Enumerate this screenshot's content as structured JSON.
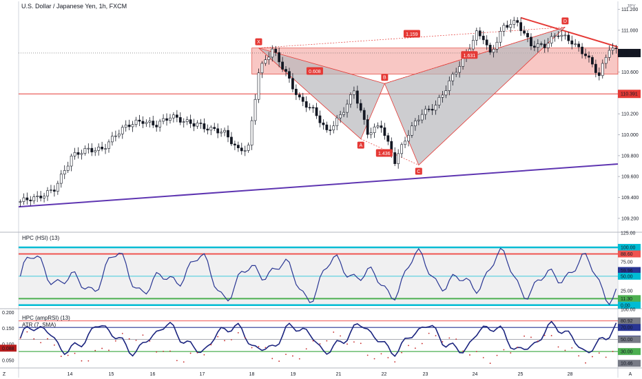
{
  "header": {
    "title": "U.S. Dollar / Japanese Yen, 1h, FXCM",
    "currency": "JPY"
  },
  "colors": {
    "up": "#131722",
    "down": "#131722",
    "zone_fill": "#f6b4b0",
    "zone_stroke": "#e0443a",
    "pattern_fill": "#b8b8bc",
    "trend_red": "#e53935",
    "trend_purple": "#5e35b1",
    "osc_line": "#283593",
    "band_blue": "#00bcd4",
    "band_red": "#ef5350",
    "band_green": "#4caf50"
  },
  "chart_data": [
    {
      "type": "candlestick",
      "title": "U.S. Dollar / Japanese Yen, 1h, FXCM",
      "ylim": [
        109.1,
        111.25
      ],
      "yticks": [
        "111.200",
        "111.000",
        "110.800",
        "110.600",
        "110.400",
        "110.200",
        "110.000",
        "109.800",
        "109.600",
        "109.400",
        "109.200"
      ],
      "xticks": [
        "Z",
        "14",
        "15",
        "16",
        "17",
        "18",
        "19",
        "21",
        "22",
        "23",
        "24",
        "25",
        "28",
        "A"
      ],
      "price_labels": [
        {
          "value": 110.782,
          "text": "110.782",
          "bg": "#131722"
        },
        {
          "value": 110.391,
          "text": "110.391",
          "bg": "#e53935"
        }
      ],
      "anchors": [
        [
          0,
          109.36
        ],
        [
          5,
          109.38
        ],
        [
          10,
          109.5
        ],
        [
          15,
          109.78
        ],
        [
          20,
          109.85
        ],
        [
          24,
          109.88
        ],
        [
          28,
          110.0
        ],
        [
          32,
          110.08
        ],
        [
          36,
          110.14
        ],
        [
          40,
          110.11
        ],
        [
          44,
          110.16
        ],
        [
          48,
          110.12
        ],
        [
          52,
          110.12
        ],
        [
          56,
          110.05
        ],
        [
          60,
          110.0
        ],
        [
          64,
          109.86
        ],
        [
          67,
          109.9
        ],
        [
          70,
          110.6
        ],
        [
          74,
          110.8
        ],
        [
          78,
          110.6
        ],
        [
          82,
          110.35
        ],
        [
          86,
          110.22
        ],
        [
          90,
          110.02
        ],
        [
          94,
          110.2
        ],
        [
          98,
          110.42
        ],
        [
          102,
          110.0
        ],
        [
          106,
          110.1
        ],
        [
          110,
          109.76
        ],
        [
          114,
          110.0
        ],
        [
          118,
          110.2
        ],
        [
          122,
          110.3
        ],
        [
          126,
          110.5
        ],
        [
          130,
          110.7
        ],
        [
          134,
          110.98
        ],
        [
          136,
          110.95
        ],
        [
          138,
          110.78
        ],
        [
          142,
          111.02
        ],
        [
          146,
          111.07
        ],
        [
          150,
          110.88
        ],
        [
          154,
          110.85
        ],
        [
          158,
          110.95
        ],
        [
          162,
          110.9
        ],
        [
          166,
          110.78
        ],
        [
          170,
          110.55
        ],
        [
          173,
          110.82
        ],
        [
          176,
          110.8
        ]
      ],
      "pattern_points": [
        {
          "label": "X",
          "value": 110.83
        },
        {
          "label": "A",
          "value": 109.96
        },
        {
          "label": "B",
          "value": 110.49
        },
        {
          "label": "C",
          "value": 109.71
        },
        {
          "label": "D",
          "value": 111.03
        }
      ],
      "ratios": [
        "1.159",
        "0.608",
        "1.631",
        "1.436"
      ],
      "zone": [
        110.58,
        110.83
      ],
      "hline": 110.391
    },
    {
      "type": "line",
      "title": "HPC (HSI) (13)",
      "ylim": [
        -5,
        125
      ],
      "yticks": [
        "125.00",
        "100.00",
        "75.00",
        "50.00",
        "25.00",
        "0.00"
      ],
      "levels": [
        {
          "value": 100.0,
          "text": "100.00",
          "bg": "#00bcd4"
        },
        {
          "value": 88.6,
          "text": "88.60",
          "bg": "#ef5350"
        },
        {
          "value": 59.96,
          "text": "59.96",
          "bg": "#283593"
        },
        {
          "value": 50.0,
          "text": "50.00",
          "bg": "#00bcd4"
        },
        {
          "value": 11.3,
          "text": "11.30",
          "bg": "#4caf50"
        },
        {
          "value": 0.0,
          "text": "0.00",
          "bg": "#00bcd4"
        }
      ]
    },
    {
      "type": "line",
      "title": "HPC (ampRSI) (13)",
      "subtitle": "ATR (7, SMA)",
      "ylim_left": [
        0.03,
        0.21
      ],
      "yticks_left": [
        "0.200",
        "0.150",
        "0.100",
        "0.050"
      ],
      "ylim_right": [
        5,
        100
      ],
      "yticks_right": [
        "100.00",
        "80.92",
        "70.00",
        "50.74",
        "50.00",
        "30.00",
        "10.46"
      ],
      "atr_label": "0.088",
      "levels": [
        {
          "value": 80.92,
          "text": "80.92",
          "bg": "#787b86"
        },
        {
          "value": 70.0,
          "text": "70.00",
          "bg": "#283593"
        },
        {
          "value": 50.74,
          "text": "50.74",
          "bg": "#283593"
        },
        {
          "value": 50.0,
          "text": "50.00",
          "bg": "#787b86"
        },
        {
          "value": 30.0,
          "text": "30.00",
          "bg": "#4caf50"
        },
        {
          "value": 10.46,
          "text": "10.46",
          "bg": "#787b86"
        }
      ]
    }
  ]
}
